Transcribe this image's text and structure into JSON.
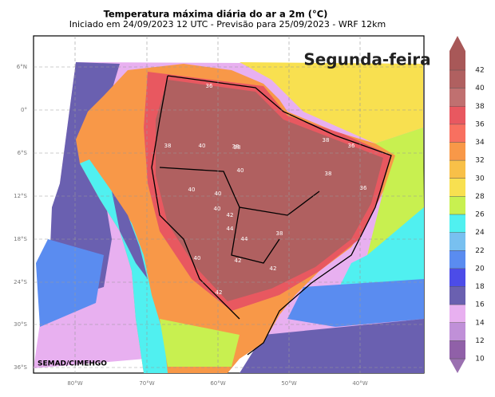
{
  "title": "Temperatura máxima diária do ar a 2m (°C)",
  "subtitle": "Iniciado em 24/09/2023 12 UTC - Previsão para 25/09/2023 - WRF 12km",
  "day": "Segunda-feira",
  "credit": "SEMAD/CIMEHGO",
  "lat_labels": [
    "6°N",
    "0°",
    "6°S",
    "12°S",
    "18°S",
    "24°S",
    "30°S",
    "36°S"
  ],
  "lon_labels": [
    "80°W",
    "70°W",
    "60°W",
    "50°W",
    "40°W"
  ],
  "colorbar": {
    "ticks": [
      10,
      12,
      14,
      16,
      18,
      20,
      22,
      24,
      26,
      28,
      30,
      32,
      34,
      36,
      38,
      40,
      42
    ],
    "colors": [
      "#9060a8",
      "#c090d8",
      "#e8b0f0",
      "#6a60b0",
      "#4c4ce8",
      "#5a8cf0",
      "#78c0f0",
      "#50f0f0",
      "#c8f050",
      "#f8e050",
      "#f8c048",
      "#f89848",
      "#f87060",
      "#e85860",
      "#c07070",
      "#b06060"
    ],
    "under_color": "#9a70b0",
    "over_color": "#a85858"
  },
  "contour_labels": [
    36,
    38,
    40,
    40,
    38,
    40,
    38,
    40,
    42,
    44,
    44,
    42,
    40,
    42,
    38,
    38,
    36,
    38,
    36,
    40,
    42
  ]
}
